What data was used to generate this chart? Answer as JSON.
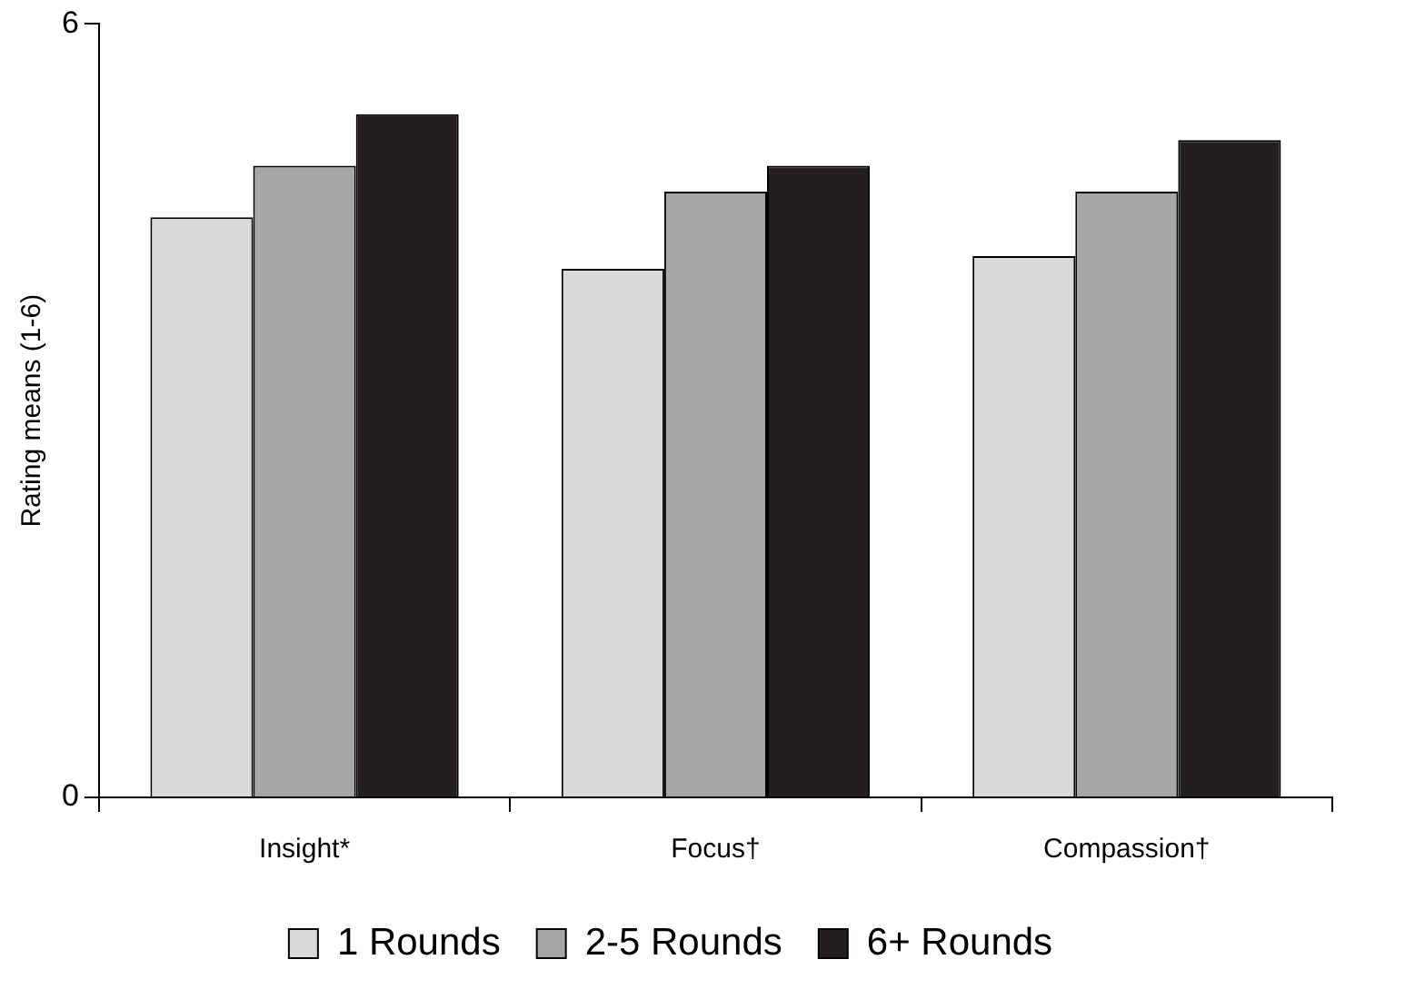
{
  "chart_data": {
    "type": "bar",
    "ylabel": "Rating means (1-6)",
    "categories": [
      "Insight*",
      "Focus†",
      "Compassion†"
    ],
    "series": [
      {
        "name": "1 Rounds",
        "color": "#d9d9d9",
        "values": [
          4.5,
          4.1,
          4.2
        ]
      },
      {
        "name": "2-5 Rounds",
        "color": "#a6a6a6",
        "values": [
          4.9,
          4.7,
          4.7
        ]
      },
      {
        "name": "6+ Rounds",
        "color": "#231f20",
        "values": [
          5.3,
          4.9,
          5.1
        ]
      }
    ],
    "ylim": [
      0,
      6
    ],
    "yticks": [
      0,
      6
    ],
    "grid": false,
    "legend": "bottom"
  }
}
